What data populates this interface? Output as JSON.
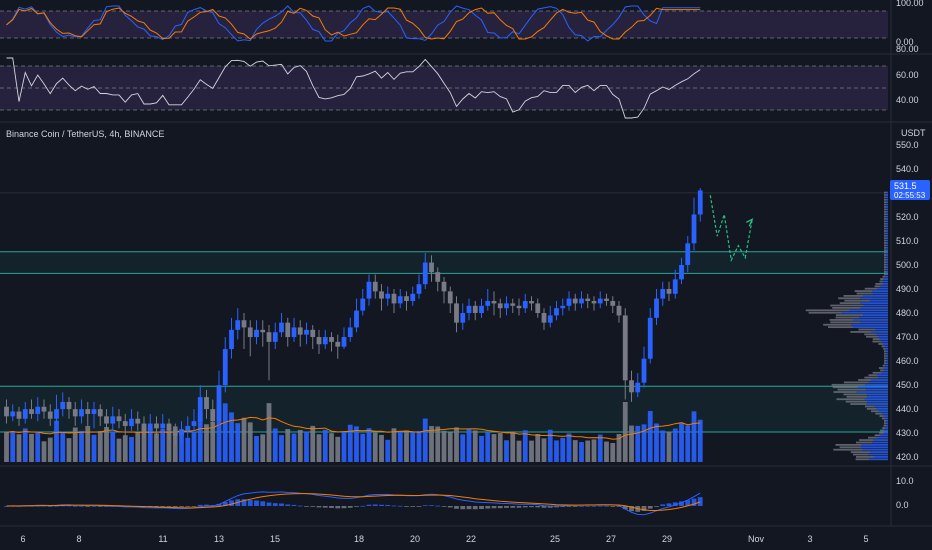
{
  "symbol_label": "Binance Coin / TetherUS, 4h, BINANCE",
  "currency_label": "USDT",
  "price_badge": "531.5",
  "countdown_badge": "02:55:53",
  "colors": {
    "background": "#131722",
    "up": "#2962ff",
    "down": "#787b86",
    "zone_line": "#26a69a",
    "zone_fill": "rgba(38,166,154,0.08)",
    "stoch_k": "#2962ff",
    "stoch_d": "#f57c00",
    "rsi_line": "#d1d4dc",
    "indicator_band": "rgba(126,87,194,0.18)",
    "projection": "#26c281",
    "ma_line": "#f57c00"
  },
  "chart_data": [
    {
      "type": "line",
      "name": "stochastic-rsi",
      "series": [
        {
          "role": "k"
        },
        {
          "role": "d"
        }
      ],
      "y_ticks": [
        "100.00",
        "0.00"
      ],
      "levels": [
        80,
        20
      ]
    },
    {
      "type": "line",
      "name": "rsi",
      "y_ticks": [
        "80.00",
        "60.00",
        "40.00"
      ],
      "levels": [
        70,
        50,
        30
      ]
    },
    {
      "type": "candlestick",
      "name": "price",
      "ylim": [
        418,
        552
      ],
      "y_ticks": [
        "550.0",
        "540.0",
        "530.0",
        "520.0",
        "510.0",
        "500.0",
        "490.0",
        "480.0",
        "470.0",
        "460.0",
        "450.0",
        "440.0",
        "430.0",
        "420.0"
      ],
      "x_ticks": [
        "6",
        "8",
        "11",
        "13",
        "15",
        "18",
        "20",
        "22",
        "25",
        "27",
        "29",
        "Nov",
        "3",
        "5"
      ],
      "zones": [
        [
          496.5,
          505.5
        ],
        [
          430.5,
          449.5
        ]
      ],
      "projection_path": [
        [
          0,
          529
        ],
        [
          1,
          512
        ],
        [
          2,
          521
        ],
        [
          3,
          502
        ],
        [
          4,
          508
        ],
        [
          5,
          503
        ],
        [
          6,
          519
        ]
      ],
      "values": [
        [
          441,
          437,
          444,
          434
        ],
        [
          437,
          439,
          442,
          435
        ],
        [
          439,
          436,
          441,
          433
        ],
        [
          436,
          440,
          443,
          434
        ],
        [
          440,
          438,
          444,
          436
        ],
        [
          438,
          441,
          445,
          435
        ],
        [
          441,
          439,
          444,
          436
        ],
        [
          439,
          436,
          442,
          433
        ],
        [
          436,
          440,
          446,
          434
        ],
        [
          440,
          443,
          447,
          437
        ],
        [
          443,
          440,
          445,
          436
        ],
        [
          440,
          437,
          443,
          433
        ],
        [
          437,
          440,
          444,
          434
        ],
        [
          440,
          438,
          443,
          433
        ],
        [
          438,
          440,
          443,
          432
        ],
        [
          440,
          437,
          442,
          433
        ],
        [
          437,
          434,
          440,
          430
        ],
        [
          434,
          437,
          441,
          431
        ],
        [
          437,
          435,
          440,
          432
        ],
        [
          435,
          433,
          438,
          429
        ],
        [
          433,
          436,
          440,
          431
        ],
        [
          436,
          434,
          439,
          431
        ],
        [
          434,
          431,
          437,
          428
        ],
        [
          431,
          434,
          438,
          429
        ],
        [
          434,
          432,
          437,
          428
        ],
        [
          432,
          434,
          438,
          430
        ],
        [
          434,
          431,
          436,
          427
        ],
        [
          431,
          429,
          434,
          425
        ],
        [
          429,
          431,
          435,
          426
        ],
        [
          431,
          433,
          437,
          428
        ],
        [
          433,
          435,
          440,
          431
        ],
        [
          435,
          445,
          450,
          433
        ],
        [
          445,
          440,
          448,
          436
        ],
        [
          440,
          435,
          444,
          431
        ],
        [
          435,
          450,
          456,
          433
        ],
        [
          450,
          465,
          470,
          447
        ],
        [
          465,
          473,
          478,
          461
        ],
        [
          473,
          477,
          482,
          469
        ],
        [
          477,
          474,
          480,
          465
        ],
        [
          474,
          470,
          477,
          462
        ],
        [
          470,
          473,
          477,
          467
        ],
        [
          473,
          472,
          477,
          466
        ],
        [
          472,
          468,
          475,
          452
        ],
        [
          468,
          472,
          476,
          465
        ],
        [
          472,
          476,
          480,
          470
        ],
        [
          476,
          470,
          478,
          466
        ],
        [
          470,
          474,
          478,
          468
        ],
        [
          474,
          471,
          477,
          466
        ],
        [
          471,
          473,
          476,
          467
        ],
        [
          473,
          470,
          475,
          465
        ],
        [
          470,
          467,
          473,
          463
        ],
        [
          467,
          470,
          473,
          465
        ],
        [
          470,
          468,
          472,
          464
        ],
        [
          468,
          466,
          471,
          461
        ],
        [
          466,
          470,
          474,
          465
        ],
        [
          470,
          474,
          478,
          468
        ],
        [
          474,
          481,
          486,
          472
        ],
        [
          481,
          486,
          490,
          479
        ],
        [
          486,
          493,
          496,
          483
        ],
        [
          493,
          489,
          496,
          486
        ],
        [
          489,
          486,
          492,
          481
        ],
        [
          486,
          488,
          491,
          483
        ],
        [
          488,
          484,
          490,
          480
        ],
        [
          484,
          487,
          490,
          482
        ],
        [
          487,
          485,
          489,
          481
        ],
        [
          485,
          488,
          491,
          483
        ],
        [
          488,
          492,
          496,
          486
        ],
        [
          492,
          501,
          505,
          490
        ],
        [
          501,
          497,
          504,
          493
        ],
        [
          497,
          493,
          499,
          489
        ],
        [
          493,
          489,
          495,
          484
        ],
        [
          489,
          484,
          491,
          480
        ],
        [
          484,
          476,
          487,
          472
        ],
        [
          476,
          480,
          484,
          473
        ],
        [
          480,
          483,
          486,
          477
        ],
        [
          483,
          480,
          485,
          477
        ],
        [
          480,
          483,
          486,
          478
        ],
        [
          483,
          485,
          490,
          481
        ],
        [
          485,
          484,
          489,
          479
        ],
        [
          484,
          482,
          486,
          478
        ],
        [
          482,
          484,
          487,
          479
        ],
        [
          484,
          483,
          486,
          480
        ],
        [
          483,
          482,
          486,
          479
        ],
        [
          482,
          485,
          488,
          480
        ],
        [
          485,
          484,
          487,
          481
        ],
        [
          484,
          480,
          486,
          478
        ],
        [
          480,
          476,
          482,
          473
        ],
        [
          476,
          479,
          483,
          474
        ],
        [
          479,
          482,
          485,
          477
        ],
        [
          482,
          483,
          486,
          479
        ],
        [
          483,
          486,
          489,
          481
        ],
        [
          486,
          484,
          488,
          481
        ],
        [
          484,
          486,
          489,
          482
        ],
        [
          486,
          485,
          488,
          482
        ],
        [
          485,
          484,
          487,
          481
        ],
        [
          484,
          486,
          489,
          482
        ],
        [
          486,
          485,
          488,
          483
        ],
        [
          485,
          483,
          487,
          480
        ],
        [
          483,
          479,
          485,
          476
        ],
        [
          479,
          452,
          482,
          444
        ],
        [
          452,
          447,
          456,
          443
        ],
        [
          447,
          451,
          455,
          445
        ],
        [
          451,
          461,
          466,
          449
        ],
        [
          461,
          478,
          482,
          459
        ],
        [
          478,
          486,
          490,
          475
        ],
        [
          486,
          490,
          493,
          483
        ],
        [
          490,
          488,
          493,
          485
        ],
        [
          488,
          494,
          498,
          486
        ],
        [
          494,
          500,
          503,
          492
        ],
        [
          500,
          509,
          512,
          497
        ],
        [
          509,
          521,
          528,
          506
        ],
        [
          521,
          531,
          532,
          518
        ]
      ]
    },
    {
      "type": "bar",
      "name": "volume"
    },
    {
      "type": "line",
      "name": "macd",
      "y_ticks": [
        "10.0",
        "0.0"
      ]
    }
  ]
}
